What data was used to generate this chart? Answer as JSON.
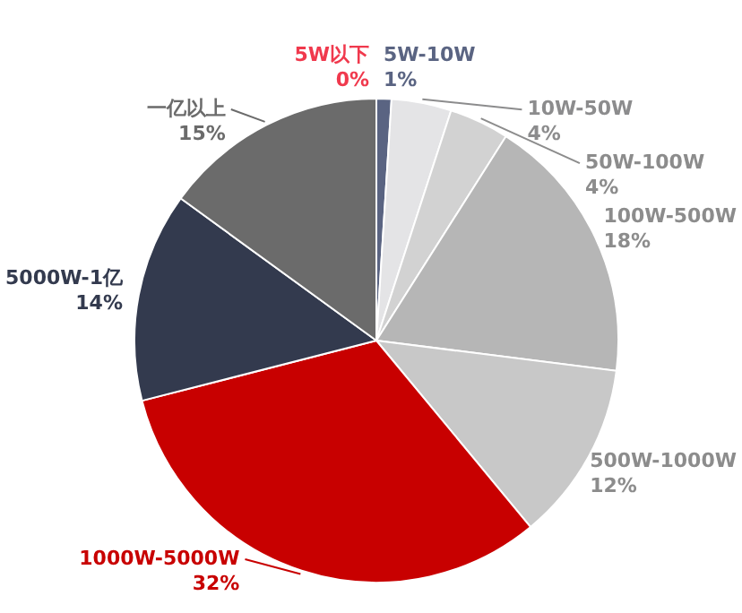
{
  "chart_data": {
    "type": "pie",
    "categories": [
      "5W以下",
      "5W-10W",
      "10W-50W",
      "50W-100W",
      "100W-500W",
      "500W-1000W",
      "1000W-5000W",
      "5000W-1亿",
      "一亿以上"
    ],
    "values": [
      0,
      1,
      4,
      4,
      18,
      12,
      32,
      14,
      15
    ],
    "colors": [
      "#f0394d",
      "#5a6482",
      "#e4e4e6",
      "#d2d2d2",
      "#b6b6b6",
      "#c8c8c8",
      "#c80000",
      "#333a4e",
      "#6b6b6b"
    ],
    "value_labels": [
      "0%",
      "1%",
      "4%",
      "4%",
      "18%",
      "12%",
      "32%",
      "14%",
      "15%"
    ]
  }
}
